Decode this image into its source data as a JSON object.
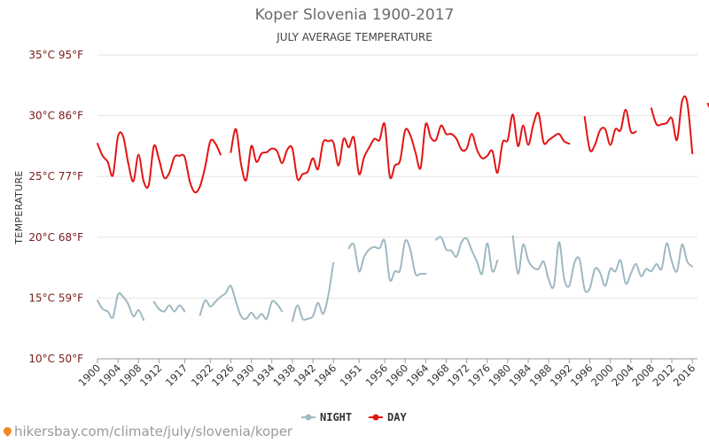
{
  "chart_data": {
    "type": "line",
    "title": "Koper Slovenia 1900-2017",
    "subtitle": "JULY AVERAGE TEMPERATURE",
    "ylabel": "TEMPERATURE",
    "xlim": [
      1900,
      2017
    ],
    "ylim": [
      10,
      35
    ],
    "yticks": [
      {
        "value": 10,
        "label": "10°C 50°F"
      },
      {
        "value": 15,
        "label": "15°C 59°F"
      },
      {
        "value": 20,
        "label": "20°C 68°F"
      },
      {
        "value": 25,
        "label": "25°C 77°F"
      },
      {
        "value": 30,
        "label": "30°C 86°F"
      },
      {
        "value": 35,
        "label": "35°C 95°F"
      }
    ],
    "xticks": [
      1900,
      1904,
      1908,
      1912,
      1917,
      1922,
      1926,
      1930,
      1934,
      1938,
      1942,
      1946,
      1951,
      1956,
      1960,
      1964,
      1968,
      1972,
      1976,
      1980,
      1984,
      1988,
      1992,
      1996,
      2000,
      2004,
      2008,
      2012,
      2016
    ],
    "grid": true,
    "legend_position": "bottom",
    "series": [
      {
        "name": "NIGHT",
        "color": "#9fb8c2",
        "values": [
          14.8,
          14.1,
          13.9,
          13.4,
          15.3,
          15.1,
          14.5,
          13.5,
          14.0,
          13.2,
          null,
          14.7,
          14.1,
          13.9,
          14.4,
          13.9,
          14.4,
          13.9,
          null,
          null,
          13.6,
          14.8,
          14.3,
          14.7,
          15.1,
          15.4,
          16.0,
          14.7,
          13.5,
          13.3,
          13.8,
          13.3,
          13.7,
          13.3,
          14.7,
          14.5,
          13.9,
          null,
          13.1,
          14.4,
          13.3,
          13.3,
          13.5,
          14.6,
          13.7,
          15.2,
          17.9,
          null,
          null,
          19.1,
          19.4,
          17.2,
          18.4,
          19.0,
          19.2,
          19.1,
          19.7,
          16.5,
          17.2,
          17.3,
          19.7,
          19.0,
          17.0,
          17.0,
          17.0,
          null,
          19.8,
          20.0,
          19.0,
          18.9,
          18.4,
          19.6,
          19.9,
          18.9,
          18.0,
          17.0,
          19.5,
          17.2,
          18.1,
          null,
          null,
          20.1,
          17.0,
          19.4,
          18.1,
          17.5,
          17.4,
          18.0,
          16.5,
          16.0,
          19.6,
          16.6,
          16.0,
          17.9,
          18.2,
          15.7,
          15.8,
          17.4,
          17.1,
          16.0,
          17.4,
          17.2,
          18.1,
          16.2,
          17.0,
          17.8,
          16.8,
          17.4,
          17.2,
          17.8,
          17.4,
          19.5,
          18.0,
          17.2,
          19.4,
          18.0,
          17.6
        ]
      },
      {
        "name": "DAY",
        "color": "#e31414",
        "values": [
          27.7,
          26.7,
          26.2,
          25.1,
          28.3,
          28.3,
          26.1,
          24.6,
          26.8,
          24.6,
          24.3,
          27.5,
          26.4,
          24.9,
          25.3,
          26.6,
          26.7,
          26.6,
          24.6,
          23.7,
          24.2,
          25.8,
          27.9,
          27.7,
          26.8,
          null,
          27.0,
          28.9,
          26.0,
          24.7,
          27.5,
          26.2,
          26.9,
          27.0,
          27.3,
          27.1,
          26.1,
          27.2,
          27.3,
          24.8,
          25.2,
          25.4,
          26.5,
          25.6,
          27.8,
          27.9,
          27.8,
          25.9,
          28.1,
          27.4,
          28.2,
          25.2,
          26.6,
          27.4,
          28.1,
          28.0,
          29.3,
          25.0,
          25.9,
          26.3,
          28.8,
          28.4,
          27.0,
          25.7,
          29.3,
          28.2,
          28.0,
          29.2,
          28.5,
          28.5,
          28.1,
          27.2,
          27.3,
          28.5,
          27.2,
          26.5,
          26.7,
          27.1,
          25.3,
          27.8,
          28.0,
          30.1,
          27.5,
          29.2,
          27.6,
          29.3,
          30.2,
          27.8,
          28.0,
          28.3,
          28.5,
          27.9,
          27.7,
          null,
          null,
          29.9,
          27.2,
          27.6,
          28.8,
          28.9,
          27.6,
          28.9,
          28.8,
          30.5,
          28.7,
          28.7,
          null,
          null,
          30.6,
          29.3,
          29.3,
          29.4,
          29.8,
          28.0,
          31.2,
          31.1,
          26.9,
          null,
          null,
          31.0,
          30.1
        ]
      }
    ]
  },
  "footer": {
    "url": "hikersbay.com/climate/july/slovenia/koper"
  }
}
